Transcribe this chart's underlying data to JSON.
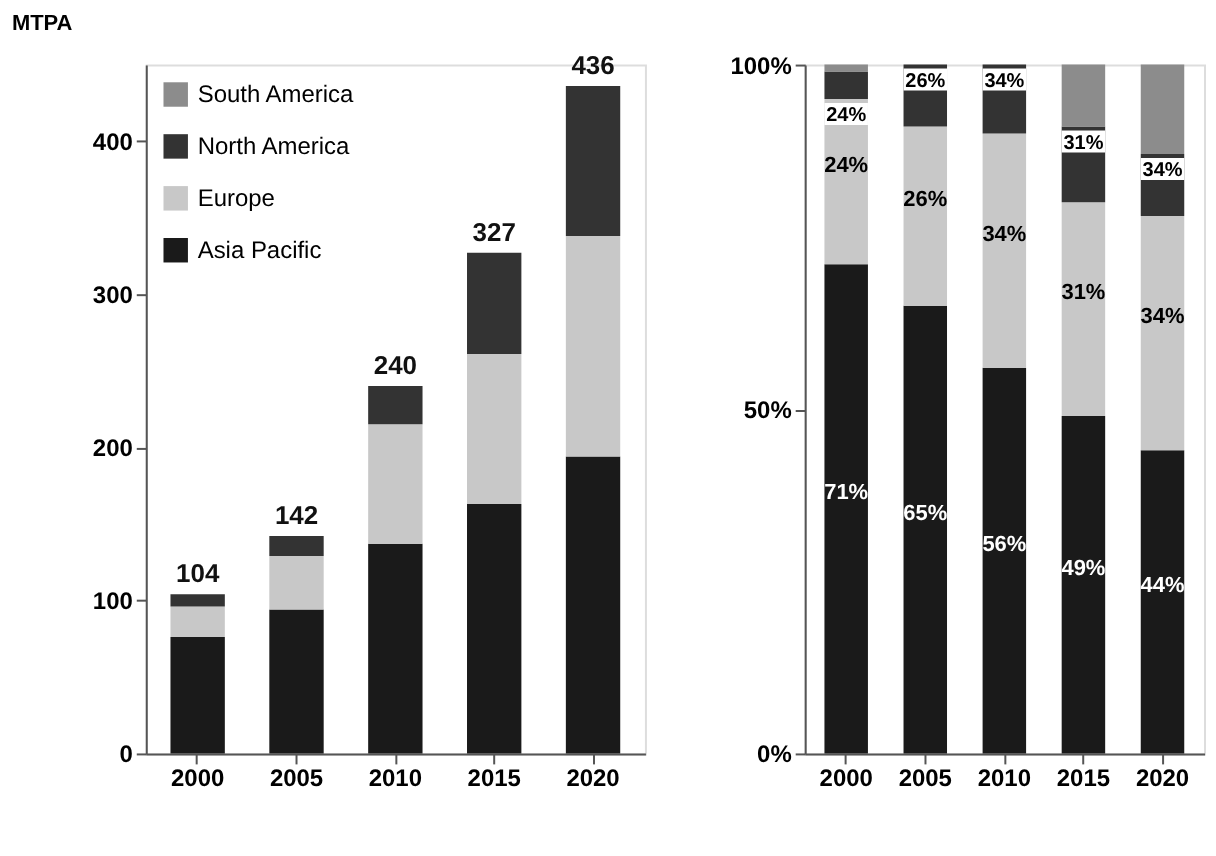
{
  "chart_data": [
    {
      "type": "bar",
      "stacked": true,
      "ylabel": "MTPA",
      "categories": [
        "2000",
        "2005",
        "2010",
        "2015",
        "2020"
      ],
      "ylim": [
        0,
        450
      ],
      "yticks": [
        0,
        100,
        200,
        300,
        400
      ],
      "grid": false,
      "legend": "top left",
      "series": [
        {
          "name": "Asia Pacific",
          "color": "#1a1a1a",
          "values": [
            76,
            94,
            137,
            163,
            194
          ]
        },
        {
          "name": "Europe",
          "color": "#c8c8c8",
          "values": [
            20,
            35,
            78,
            98,
            144
          ]
        },
        {
          "name": "North America",
          "color": "#333333",
          "values": [
            8,
            13,
            25,
            66,
            98
          ]
        },
        {
          "name": "South America",
          "color": "#8c8c8c",
          "values": [
            null,
            null,
            null,
            null,
            null
          ]
        }
      ],
      "totals": [
        "104",
        "142",
        "240",
        "327",
        "436"
      ]
    },
    {
      "type": "bar",
      "stacked": true,
      "categories": [
        "2000",
        "2005",
        "2010",
        "2015",
        "2020"
      ],
      "ylim": [
        0,
        100
      ],
      "yticks": [
        {
          "value": 0,
          "label": "0%"
        },
        {
          "value": 50,
          "label": "50%"
        },
        {
          "value": 100,
          "label": "100%"
        }
      ],
      "grid": false,
      "legend": false,
      "series": [
        {
          "color": "#1a1a1a",
          "values": [
            71,
            65,
            56,
            49,
            44
          ],
          "value_labels": [
            "71%",
            "65%",
            "56%",
            "49%",
            "44%"
          ]
        },
        {
          "color": "#c8c8c8",
          "values": [
            24,
            26,
            34,
            31,
            34
          ],
          "value_labels": [
            "24%",
            "26%",
            "34%",
            "31%",
            "34%"
          ]
        },
        {
          "color": "#333333",
          "values": [
            4,
            9,
            10,
            11,
            9
          ]
        },
        {
          "color": "#8c8c8c",
          "values": [
            1,
            null,
            null,
            9,
            13
          ]
        }
      ],
      "annotations": [
        {
          "text": "24%",
          "x": "2000",
          "y": 95
        },
        {
          "text": "26%",
          "x": "2005",
          "y": 100
        },
        {
          "text": "34%",
          "x": "2010",
          "y": 100
        },
        {
          "text": "31%",
          "x": "2015",
          "y": 91
        },
        {
          "text": "34%",
          "x": "2020",
          "y": 87
        }
      ]
    }
  ]
}
